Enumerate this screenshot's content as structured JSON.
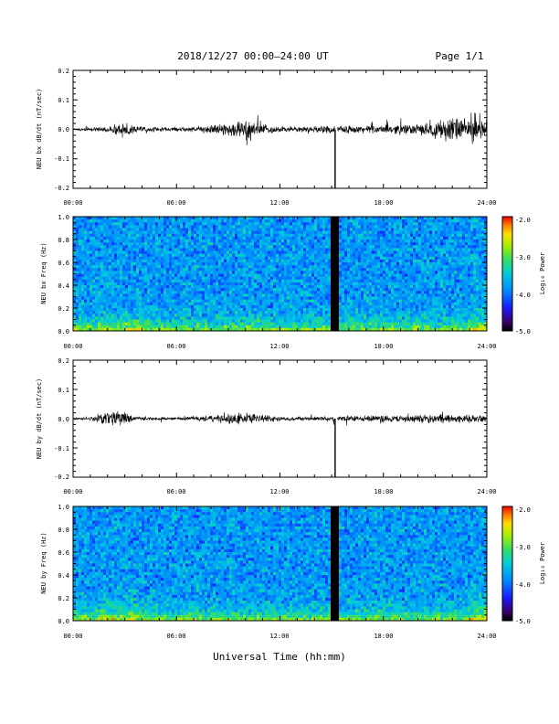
{
  "header": {
    "date_range": "2018/12/27  00:00–24:00 UT",
    "page": "Page 1/1"
  },
  "x_axis": {
    "title": "Universal Time (hh:mm)",
    "tick_labels": [
      "00:00",
      "06:00",
      "12:00",
      "18:00",
      "24:00"
    ]
  },
  "chart_data": [
    {
      "type": "line",
      "ylabel": "NEU bx dB/dt (nT/sec)",
      "ylim": [
        -0.2,
        0.2
      ],
      "xlim_hours": [
        0,
        24
      ],
      "y_ticks": [
        "0.2",
        "0.1",
        "0.0",
        "-0.1",
        "-0.2"
      ],
      "data_gap_hours": [
        15.2,
        15.33
      ],
      "spike_at_hour": 15.2,
      "spike_min": -0.2,
      "envelope_hours": [
        0,
        1,
        2,
        2.5,
        3,
        4,
        5,
        6,
        7,
        8,
        8.5,
        9,
        9.5,
        10,
        10.5,
        11,
        12,
        13,
        14,
        15,
        15.33,
        16,
        17,
        18,
        19,
        20,
        20.5,
        21,
        21.5,
        22,
        22.5,
        23,
        24
      ],
      "envelope_amplitude": [
        0.005,
        0.007,
        0.01,
        0.025,
        0.02,
        0.01,
        0.008,
        0.008,
        0.01,
        0.018,
        0.02,
        0.025,
        0.035,
        0.04,
        0.03,
        0.02,
        0.012,
        0.012,
        0.012,
        0.015,
        0.01,
        0.015,
        0.015,
        0.015,
        0.02,
        0.02,
        0.025,
        0.035,
        0.045,
        0.05,
        0.045,
        0.035,
        0.03
      ]
    },
    {
      "type": "heatmap",
      "ylabel": "NEU bx Freq (Hz)",
      "ylim": [
        0.0,
        1.0
      ],
      "xlim_hours": [
        0,
        24
      ],
      "y_ticks": [
        "1.0",
        "0.8",
        "0.6",
        "0.4",
        "0.2",
        "0.0"
      ],
      "colorbar": {
        "label": "Log₁₀ Power",
        "range": [
          -5.0,
          -2.0
        ],
        "ticks": [
          "-2.0",
          "-3.0",
          "-4.0",
          "-5.0"
        ]
      },
      "data_gap_hours": [
        14.9,
        15.4
      ]
    },
    {
      "type": "line",
      "ylabel": "NEU by dB/dt (nT/sec)",
      "ylim": [
        -0.2,
        0.2
      ],
      "xlim_hours": [
        0,
        24
      ],
      "y_ticks": [
        "0.2",
        "0.1",
        "0.0",
        "-0.1",
        "-0.2"
      ],
      "data_gap_hours": [
        15.2,
        15.33
      ],
      "spike_at_hour": 15.2,
      "spike_min": -0.2,
      "envelope_hours": [
        0,
        1,
        1.5,
        2,
        2.5,
        3,
        3.5,
        4,
        5,
        6,
        7,
        8,
        9,
        10,
        11,
        12,
        13,
        14,
        15,
        15.33,
        16,
        17,
        18,
        19,
        20,
        21,
        21.5,
        22,
        23,
        24
      ],
      "envelope_amplitude": [
        0.004,
        0.006,
        0.02,
        0.025,
        0.03,
        0.025,
        0.012,
        0.008,
        0.006,
        0.006,
        0.008,
        0.012,
        0.02,
        0.022,
        0.015,
        0.01,
        0.008,
        0.008,
        0.01,
        0.01,
        0.012,
        0.012,
        0.012,
        0.014,
        0.016,
        0.018,
        0.02,
        0.016,
        0.014,
        0.012
      ]
    },
    {
      "type": "heatmap",
      "ylabel": "NEU by Freq (Hz)",
      "ylim": [
        0.0,
        1.0
      ],
      "xlim_hours": [
        0,
        24
      ],
      "y_ticks": [
        "1.0",
        "0.8",
        "0.6",
        "0.4",
        "0.2",
        "0.0"
      ],
      "colorbar": {
        "label": "Log₁₀ Power",
        "range": [
          -5.0,
          -2.0
        ],
        "ticks": [
          "-2.0",
          "-3.0",
          "-4.0",
          "-5.0"
        ]
      },
      "data_gap_hours": [
        14.9,
        15.4
      ]
    }
  ]
}
